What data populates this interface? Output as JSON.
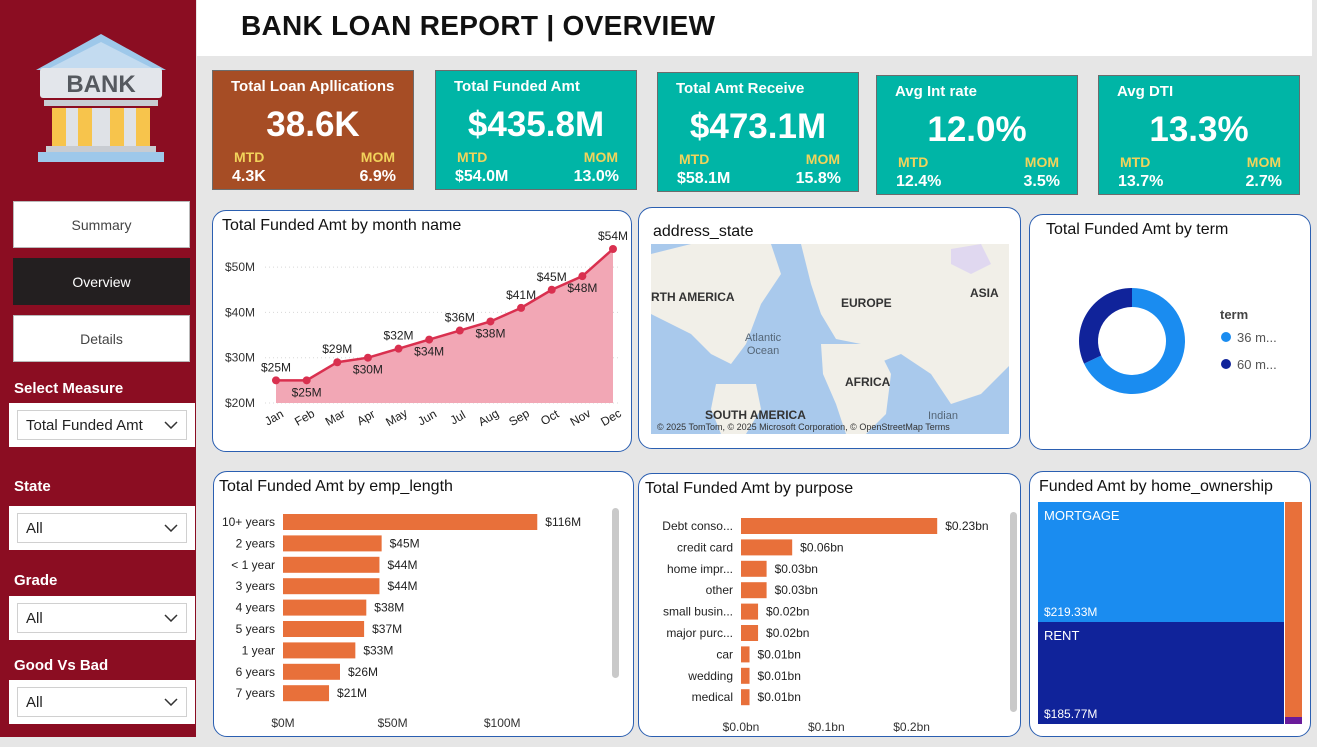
{
  "header": {
    "title": "BANK LOAN REPORT | OVERVIEW"
  },
  "logo": {
    "text": "BANK",
    "icon": "bank-building-icon"
  },
  "nav": [
    {
      "label": "Summary",
      "active": false
    },
    {
      "label": "Overview",
      "active": true
    },
    {
      "label": "Details",
      "active": false
    }
  ],
  "filters": {
    "measure": {
      "label": "Select Measure",
      "value": "Total Funded Amt"
    },
    "state": {
      "label": "State",
      "value": "All"
    },
    "grade": {
      "label": "Grade",
      "value": "All"
    },
    "good_bad": {
      "label": "Good Vs Bad",
      "value": "All"
    }
  },
  "kpis": [
    {
      "title": "Total Loan Apllications",
      "value": "38.6K",
      "mtd_label": "MTD",
      "mtd": "4.3K",
      "mom_label": "MOM",
      "mom": "6.9%",
      "color": "#a64d25"
    },
    {
      "title": "Total Funded Amt",
      "value": "$435.8M",
      "mtd_label": "MTD",
      "mtd": "$54.0M",
      "mom_label": "MOM",
      "mom": "13.0%",
      "color": "#00b5a6"
    },
    {
      "title": "Total  Amt Receive",
      "value": "$473.1M",
      "mtd_label": "MTD",
      "mtd": "$58.1M",
      "mom_label": "MOM",
      "mom": "15.8%",
      "color": "#00b5a6"
    },
    {
      "title": "Avg Int rate",
      "value": "12.0%",
      "mtd_label": "MTD",
      "mtd": "12.4%",
      "mom_label": "MOM",
      "mom": "3.5%",
      "color": "#00b5a6"
    },
    {
      "title": "Avg DTI",
      "value": "13.3%",
      "mtd_label": "MTD",
      "mtd": "13.7%",
      "mom_label": "MOM",
      "mom": "2.7%",
      "color": "#00b5a6"
    }
  ],
  "panels": {
    "month": {
      "title": "Total Funded Amt by month name"
    },
    "map": {
      "title": "address_state",
      "labels": {
        "north_america": "RTH AMERICA",
        "europe": "EUROPE",
        "asia": "ASIA",
        "africa": "AFRICA",
        "south_america": "SOUTH AMERICA",
        "atlantic": "Atlantic\nOcean",
        "indian": "Indian"
      },
      "credit": "© 2025 TomTom, © 2025 Microsoft Corporation, © OpenStreetMap Terms"
    },
    "term": {
      "title": "Total Funded Amt by term",
      "legend_title": "term"
    },
    "emp": {
      "title": "Total Funded Amt by emp_length"
    },
    "purpose": {
      "title": "Total Funded Amt by purpose"
    },
    "home": {
      "title": "Funded Amt by home_ownership"
    }
  },
  "chart_data": [
    {
      "type": "area",
      "title": "Total Funded Amt by month name",
      "categories": [
        "Jan",
        "Feb",
        "Mar",
        "Apr",
        "May",
        "Jun",
        "Jul",
        "Aug",
        "Sep",
        "Oct",
        "Nov",
        "Dec"
      ],
      "values": [
        25,
        25,
        29,
        30,
        32,
        34,
        36,
        38,
        41,
        45,
        48,
        54
      ],
      "labels": [
        "$25M",
        "$25M",
        "$29M",
        "$30M",
        "$32M",
        "$34M",
        "$36M",
        "$38M",
        "$41M",
        "$45M",
        "$48M",
        "$54M"
      ],
      "yticks": [
        "$20M",
        "$30M",
        "$40M",
        "$50M"
      ],
      "ytick_values": [
        20,
        30,
        40,
        50
      ],
      "ylim": [
        20,
        54
      ],
      "line_color": "#d9304f",
      "fill_color": "#f2a7b5"
    },
    {
      "type": "pie",
      "title": "Total Funded Amt by term",
      "categories": [
        "36 m...",
        "60 m..."
      ],
      "values": [
        68,
        32
      ],
      "colors": [
        "#1a8cf0",
        "#10239a"
      ]
    },
    {
      "type": "bar",
      "title": "Total Funded Amt by emp_length",
      "categories": [
        "10+ years",
        "2 years",
        "< 1 year",
        "3 years",
        "4 years",
        "5 years",
        "1 year",
        "6 years",
        "7 years"
      ],
      "values": [
        116,
        45,
        44,
        44,
        38,
        37,
        33,
        26,
        21
      ],
      "labels": [
        "$116M",
        "$45M",
        "$44M",
        "$44M",
        "$38M",
        "$37M",
        "$33M",
        "$26M",
        "$21M"
      ],
      "xticks": [
        "$0M",
        "$50M",
        "$100M"
      ],
      "xtick_values": [
        0,
        50,
        100
      ],
      "xlim": [
        0,
        125
      ],
      "color": "#e8703a"
    },
    {
      "type": "bar",
      "title": "Total Funded Amt by purpose",
      "categories": [
        "Debt conso...",
        "credit card",
        "home impr...",
        "other",
        "small busin...",
        "major purc...",
        "car",
        "wedding",
        "medical"
      ],
      "values": [
        0.23,
        0.06,
        0.03,
        0.03,
        0.02,
        0.02,
        0.01,
        0.01,
        0.01
      ],
      "labels": [
        "$0.23bn",
        "$0.06bn",
        "$0.03bn",
        "$0.03bn",
        "$0.02bn",
        "$0.02bn",
        "$0.01bn",
        "$0.01bn",
        "$0.01bn"
      ],
      "xticks": [
        "$0.0bn",
        "$0.1bn",
        "$0.2bn"
      ],
      "xtick_values": [
        0,
        0.1,
        0.2
      ],
      "xlim": [
        0,
        0.245
      ],
      "color": "#e8703a"
    },
    {
      "type": "heatmap",
      "title": "Funded Amt by home_ownership",
      "categories": [
        "MORTGAGE",
        "RENT"
      ],
      "values": [
        219.33,
        185.77
      ],
      "labels": [
        "$219.33M",
        "$185.77M"
      ],
      "colors": [
        "#1a8cf0",
        "#10239a",
        "#e8703a",
        "#6a1b9a"
      ]
    }
  ]
}
